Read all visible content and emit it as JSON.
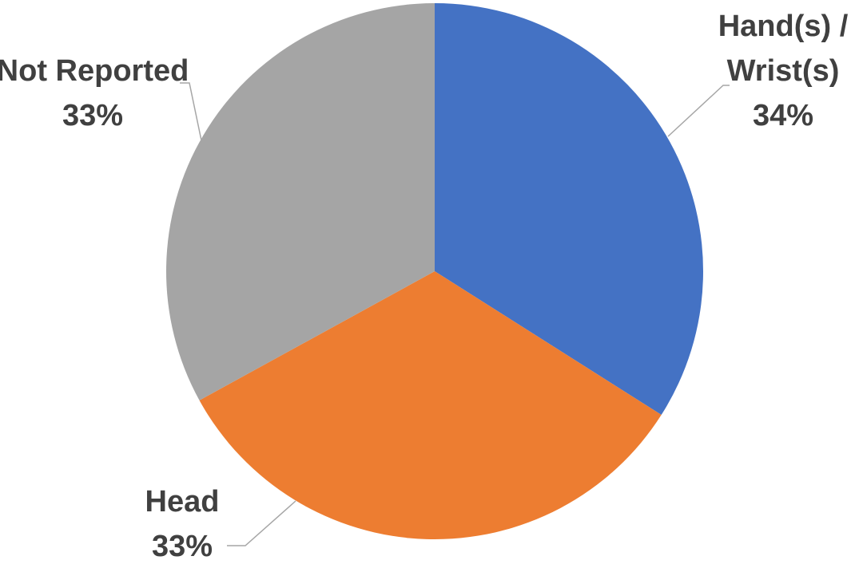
{
  "chart_data": {
    "type": "pie",
    "categories": [
      "Hand(s) / Wrist(s)",
      "Head",
      "Not Reported"
    ],
    "values": [
      34,
      33,
      33
    ],
    "value_labels": [
      "34%",
      "33%",
      "33%"
    ],
    "label_lines": [
      [
        "Hand(s) /",
        "Wrist(s)"
      ],
      [
        "Head"
      ],
      [
        "Not Reported"
      ]
    ],
    "colors": [
      "#4472C4",
      "#ED7D31",
      "#A5A5A5"
    ],
    "title": "",
    "start_angle": "12 o'clock",
    "direction": "clockwise",
    "data_labels": "outside with leader lines",
    "legend": "none"
  }
}
